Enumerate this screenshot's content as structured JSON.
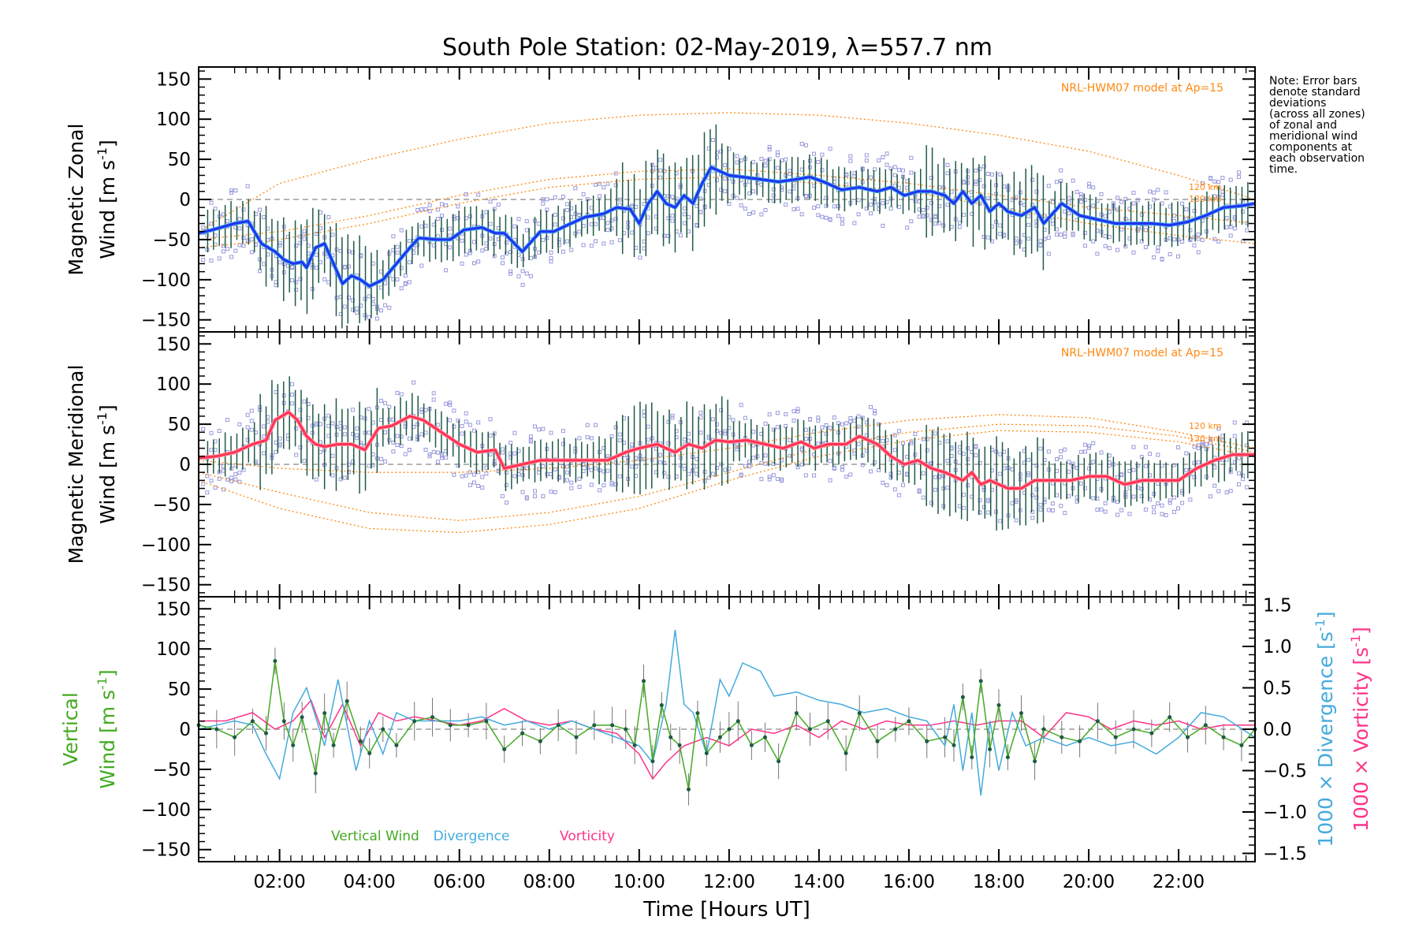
{
  "title": "South Pole Station: 02-May-2019, λ=557.7 nm",
  "note_lines": [
    "Note: Error bars",
    "denote standard",
    "deviations",
    "(across all zones)",
    "of zonal and",
    "meridional wind",
    "components at",
    "each observation",
    "time."
  ],
  "xlabel": "Time [Hours UT]",
  "xticks": [
    "02:00",
    "04:00",
    "06:00",
    "08:00",
    "10:00",
    "12:00",
    "14:00",
    "16:00",
    "18:00",
    "20:00",
    "22:00"
  ],
  "yticks": [
    "150",
    "100",
    "50",
    "0",
    "−50",
    "−100",
    "−150"
  ],
  "right_ticks": [
    "1.5",
    "1.0",
    "0.5",
    "0.0",
    "−0.5",
    "−1.0",
    "−1.5"
  ],
  "colors": {
    "zonal": "#2233ee",
    "zonal_light": "#44aaee",
    "meridional": "#ff3355",
    "meridional_light": "#ff99aa",
    "vertical": "#44aa22",
    "divergence": "#44aadd",
    "vorticity": "#ff3388",
    "model": "#ff8811",
    "err": "#1f5a44",
    "scatter": "#9999dd"
  },
  "panels": {
    "zonal": {
      "ylabel1": "Magnetic Zonal",
      "ylabel2": "Wind [m s",
      "ylabel_exp": "-1",
      "ylabel_end": "]",
      "model_label": "NRL-HWM07 model at Ap=15",
      "alt_120": "120 km",
      "alt_130": "130 km"
    },
    "meridional": {
      "ylabel1": "Magnetic Meridional",
      "ylabel2": "Wind [m s",
      "ylabel_exp": "-1",
      "ylabel_end": "]",
      "model_label": "NRL-HWM07 model at Ap=15",
      "alt_120": "120 km",
      "alt_130": "130 km"
    },
    "vertical": {
      "ylabel1": "Vertical",
      "ylabel2": "Wind [m s",
      "ylabel_exp": "-1",
      "ylabel_end": "]",
      "right_label1": "1000 × Divergence [s",
      "right_label2": "1000 × Vorticity [s",
      "right_exp": "-1",
      "right_end": "]",
      "legend_vertical": "Vertical Wind",
      "legend_divergence": "Divergence",
      "legend_vorticity": "Vorticity"
    }
  },
  "chart_data": [
    {
      "type": "line",
      "title": "Magnetic Zonal Wind",
      "ylabel": "Magnetic Zonal Wind [m s-1]",
      "xlabel": "Time [Hours UT]",
      "xlim": [
        0.2,
        23.7
      ],
      "ylim": [
        -165,
        165
      ],
      "series": [
        {
          "name": "Zonal wind (mean)",
          "x": [
            0.2,
            0.5,
            1.0,
            1.3,
            1.6,
            1.9,
            2.1,
            2.3,
            2.5,
            2.6,
            2.8,
            3.0,
            3.2,
            3.4,
            3.6,
            3.8,
            4.0,
            4.3,
            4.6,
            4.9,
            5.1,
            5.5,
            5.8,
            6.1,
            6.5,
            6.8,
            7.0,
            7.4,
            7.8,
            8.1,
            8.4,
            8.8,
            9.2,
            9.5,
            9.8,
            10.0,
            10.2,
            10.4,
            10.6,
            10.8,
            11.0,
            11.2,
            11.4,
            11.6,
            11.8,
            12.0,
            12.3,
            12.7,
            13.1,
            13.5,
            13.8,
            14.1,
            14.5,
            14.9,
            15.3,
            15.6,
            15.9,
            16.2,
            16.5,
            16.8,
            17.0,
            17.2,
            17.4,
            17.6,
            17.8,
            18.0,
            18.2,
            18.5,
            18.8,
            19.0,
            19.4,
            19.8,
            20.2,
            20.6,
            21.0,
            21.4,
            21.8,
            22.2,
            22.6,
            23.0,
            23.4,
            23.7
          ],
          "values": [
            -42,
            -38,
            -30,
            -27,
            -55,
            -65,
            -75,
            -80,
            -78,
            -85,
            -60,
            -55,
            -80,
            -105,
            -95,
            -100,
            -108,
            -100,
            -80,
            -60,
            -48,
            -50,
            -50,
            -38,
            -35,
            -42,
            -42,
            -65,
            -40,
            -40,
            -32,
            -22,
            -18,
            -10,
            -12,
            -30,
            -5,
            10,
            -5,
            -10,
            5,
            -5,
            20,
            40,
            35,
            30,
            28,
            25,
            22,
            25,
            28,
            22,
            12,
            15,
            10,
            15,
            5,
            10,
            10,
            5,
            -5,
            10,
            -5,
            5,
            -15,
            -5,
            -15,
            -20,
            -10,
            -30,
            -5,
            -20,
            -25,
            -30,
            -30,
            -30,
            -32,
            -28,
            -20,
            -10,
            -8,
            -5
          ]
        },
        {
          "name": "NRL-HWM07 model upper (120 km)",
          "x": [
            0.2,
            2,
            4,
            6,
            8,
            10,
            12,
            14,
            16,
            18,
            20,
            22,
            23.7
          ],
          "values": [
            -40,
            20,
            50,
            75,
            95,
            105,
            108,
            105,
            95,
            80,
            60,
            30,
            0
          ]
        },
        {
          "name": "NRL-HWM07 model mid (130 km)",
          "x": [
            0.2,
            2,
            4,
            6,
            8,
            10,
            12,
            14,
            16,
            18,
            20,
            22,
            23.7
          ],
          "values": [
            -50,
            -40,
            -20,
            5,
            25,
            35,
            38,
            30,
            20,
            5,
            -10,
            -20,
            -30
          ]
        },
        {
          "name": "NRL-HWM07 model lower",
          "x": [
            0.2,
            2,
            4,
            6,
            8,
            10,
            12,
            14,
            16,
            18,
            20,
            22,
            23.7
          ],
          "values": [
            -60,
            -50,
            -30,
            -5,
            15,
            25,
            28,
            20,
            10,
            -10,
            -30,
            -45,
            -55
          ]
        }
      ]
    },
    {
      "type": "line",
      "title": "Magnetic Meridional Wind",
      "ylabel": "Magnetic Meridional Wind [m s-1]",
      "xlabel": "Time [Hours UT]",
      "xlim": [
        0.2,
        23.7
      ],
      "ylim": [
        -165,
        165
      ],
      "series": [
        {
          "name": "Meridional wind (mean)",
          "x": [
            0.2,
            0.6,
            1.0,
            1.4,
            1.7,
            1.9,
            2.2,
            2.4,
            2.6,
            2.8,
            3.0,
            3.3,
            3.6,
            3.9,
            4.2,
            4.5,
            4.9,
            5.2,
            5.6,
            6.0,
            6.4,
            6.8,
            7.0,
            7.4,
            7.8,
            8.1,
            8.5,
            8.9,
            9.3,
            9.7,
            10.0,
            10.4,
            10.8,
            11.1,
            11.4,
            11.7,
            12.0,
            12.4,
            12.8,
            13.2,
            13.6,
            13.9,
            14.2,
            14.6,
            14.9,
            15.3,
            15.6,
            15.9,
            16.2,
            16.5,
            16.8,
            17.0,
            17.2,
            17.4,
            17.6,
            17.8,
            18.0,
            18.2,
            18.5,
            18.8,
            19.2,
            19.6,
            20.0,
            20.4,
            20.8,
            21.2,
            21.6,
            22.0,
            22.4,
            22.8,
            23.2,
            23.7
          ],
          "values": [
            8,
            10,
            15,
            25,
            30,
            55,
            65,
            55,
            35,
            25,
            22,
            25,
            25,
            18,
            45,
            48,
            60,
            55,
            40,
            25,
            15,
            18,
            -5,
            0,
            5,
            5,
            5,
            5,
            5,
            15,
            20,
            25,
            15,
            25,
            20,
            30,
            28,
            30,
            25,
            20,
            28,
            20,
            25,
            25,
            35,
            25,
            10,
            0,
            5,
            -5,
            -10,
            -15,
            -20,
            -10,
            -25,
            -20,
            -25,
            -30,
            -30,
            -20,
            -20,
            -20,
            -15,
            -15,
            -25,
            -20,
            -20,
            -20,
            -5,
            5,
            12,
            12
          ]
        },
        {
          "name": "NRL-HWM07 model upper (120 km)",
          "x": [
            0.2,
            2,
            4,
            6,
            8,
            10,
            12,
            14,
            16,
            18,
            20,
            22,
            23.7
          ],
          "values": [
            5,
            -5,
            -10,
            -10,
            -5,
            5,
            20,
            40,
            55,
            62,
            58,
            40,
            20
          ]
        },
        {
          "name": "NRL-HWM07 model mid (130 km)",
          "x": [
            0.2,
            2,
            4,
            6,
            8,
            10,
            12,
            14,
            16,
            18,
            20,
            22,
            23.7
          ],
          "values": [
            -10,
            -35,
            -60,
            -70,
            -60,
            -40,
            -10,
            20,
            40,
            50,
            48,
            35,
            15
          ]
        },
        {
          "name": "NRL-HWM07 model lower",
          "x": [
            0.2,
            2,
            4,
            6,
            8,
            10,
            12,
            14,
            16,
            18,
            20,
            22,
            23.7
          ],
          "values": [
            -20,
            -55,
            -80,
            -85,
            -75,
            -55,
            -20,
            10,
            30,
            42,
            40,
            28,
            10
          ]
        }
      ]
    },
    {
      "type": "line",
      "title": "Vertical Wind, Divergence, Vorticity",
      "ylabel": "Vertical Wind [m s-1]",
      "y2label": "1000 x Divergence [s-1] / 1000 x Vorticity [s-1]",
      "xlabel": "Time [Hours UT]",
      "xlim": [
        0.2,
        23.7
      ],
      "ylim": [
        -165,
        165
      ],
      "y2lim": [
        -1.6,
        1.6
      ],
      "series": [
        {
          "name": "Vertical Wind",
          "axis": "left",
          "x": [
            0.2,
            0.6,
            1.0,
            1.4,
            1.7,
            1.9,
            2.1,
            2.3,
            2.5,
            2.8,
            3.0,
            3.2,
            3.5,
            3.8,
            4.0,
            4.3,
            4.6,
            5.0,
            5.4,
            5.8,
            6.2,
            6.6,
            7.0,
            7.4,
            7.8,
            8.2,
            8.6,
            9.0,
            9.4,
            9.7,
            9.9,
            10.1,
            10.3,
            10.5,
            10.7,
            10.9,
            11.1,
            11.3,
            11.5,
            11.8,
            12.0,
            12.2,
            12.5,
            12.8,
            13.1,
            13.5,
            13.8,
            14.2,
            14.6,
            14.9,
            15.3,
            15.7,
            16.0,
            16.4,
            16.8,
            17.0,
            17.2,
            17.4,
            17.6,
            17.8,
            18.0,
            18.2,
            18.5,
            18.8,
            19.0,
            19.4,
            19.8,
            20.2,
            20.6,
            21.0,
            21.4,
            21.8,
            22.2,
            22.6,
            23.0,
            23.4,
            23.7
          ],
          "values": [
            5,
            0,
            -10,
            10,
            -5,
            85,
            10,
            -20,
            15,
            -55,
            20,
            -20,
            35,
            -15,
            -30,
            0,
            -20,
            10,
            15,
            5,
            5,
            10,
            -25,
            -5,
            -15,
            5,
            -10,
            5,
            5,
            0,
            -20,
            60,
            -40,
            30,
            -10,
            -20,
            -75,
            20,
            -30,
            -10,
            0,
            10,
            -20,
            -10,
            -40,
            20,
            0,
            10,
            -30,
            20,
            -15,
            0,
            10,
            -15,
            -10,
            -20,
            40,
            -35,
            60,
            -25,
            30,
            -35,
            20,
            -40,
            0,
            -10,
            -15,
            10,
            -10,
            0,
            -5,
            15,
            -10,
            5,
            -10,
            -20,
            0
          ]
        },
        {
          "name": "Divergence",
          "axis": "right",
          "x": [
            0.2,
            0.6,
            1.0,
            1.4,
            1.7,
            2.0,
            2.3,
            2.6,
            3.0,
            3.3,
            3.7,
            4.0,
            4.3,
            4.6,
            5.0,
            5.5,
            6.0,
            6.5,
            7.0,
            7.5,
            8.0,
            8.5,
            9.0,
            9.5,
            10.0,
            10.3,
            10.6,
            10.8,
            11.0,
            11.2,
            11.5,
            11.8,
            12.0,
            12.3,
            12.7,
            13.0,
            13.5,
            14.0,
            14.5,
            15.0,
            15.5,
            16.0,
            16.4,
            16.8,
            17.0,
            17.2,
            17.4,
            17.6,
            17.8,
            18.0,
            18.3,
            18.6,
            19.0,
            19.5,
            20.0,
            20.5,
            21.0,
            21.5,
            22.0,
            22.5,
            23.0,
            23.7
          ],
          "values": [
            0,
            0.05,
            0.1,
            0.05,
            -0.3,
            -0.6,
            0.2,
            0.5,
            -0.2,
            0.6,
            -0.5,
            0.1,
            -0.3,
            0.2,
            0.1,
            0.1,
            0.1,
            0.15,
            0.05,
            0.1,
            0,
            0.1,
            0,
            -0.1,
            -0.2,
            -0.4,
            0.3,
            1.2,
            0.3,
            0.2,
            -0.3,
            0.6,
            0.4,
            0.8,
            0.7,
            0.4,
            0.45,
            0.35,
            0.3,
            0.2,
            0.25,
            0.15,
            0.1,
            -0.2,
            0.3,
            -0.5,
            0.2,
            -0.8,
            0.1,
            -0.5,
            0.2,
            -0.2,
            -0.1,
            -0.2,
            -0.1,
            -0.2,
            -0.15,
            -0.3,
            -0.1,
            0.2,
            0.15,
            -0.1
          ]
        },
        {
          "name": "Vorticity",
          "axis": "right",
          "x": [
            0.2,
            0.8,
            1.4,
            1.9,
            2.3,
            2.7,
            3.0,
            3.4,
            3.8,
            4.2,
            4.6,
            5.0,
            5.5,
            6.0,
            6.5,
            7.0,
            7.5,
            8.0,
            8.5,
            9.0,
            9.5,
            10.0,
            10.3,
            10.6,
            11.0,
            11.5,
            12.0,
            12.5,
            13.0,
            13.5,
            14.0,
            14.5,
            15.0,
            15.5,
            16.0,
            16.5,
            17.0,
            17.5,
            18.0,
            18.5,
            19.0,
            19.5,
            20.0,
            20.5,
            21.0,
            21.5,
            22.0,
            22.5,
            23.0,
            23.7
          ],
          "values": [
            0.1,
            0.1,
            0.2,
            0,
            0.1,
            0.35,
            -0.1,
            0.3,
            -0.2,
            0.2,
            0.1,
            0.15,
            0.1,
            0.05,
            0.1,
            0.25,
            0.1,
            0.05,
            0.1,
            0,
            -0.05,
            -0.3,
            -0.6,
            -0.4,
            -0.2,
            -0.1,
            -0.2,
            0,
            -0.05,
            0.05,
            -0.1,
            0.1,
            0,
            0.1,
            0.05,
            0.05,
            0.1,
            0.05,
            0.1,
            0.1,
            -0.1,
            0.2,
            0.15,
            0,
            0.1,
            0.05,
            0.1,
            0,
            0.05,
            0.05
          ]
        }
      ]
    }
  ]
}
